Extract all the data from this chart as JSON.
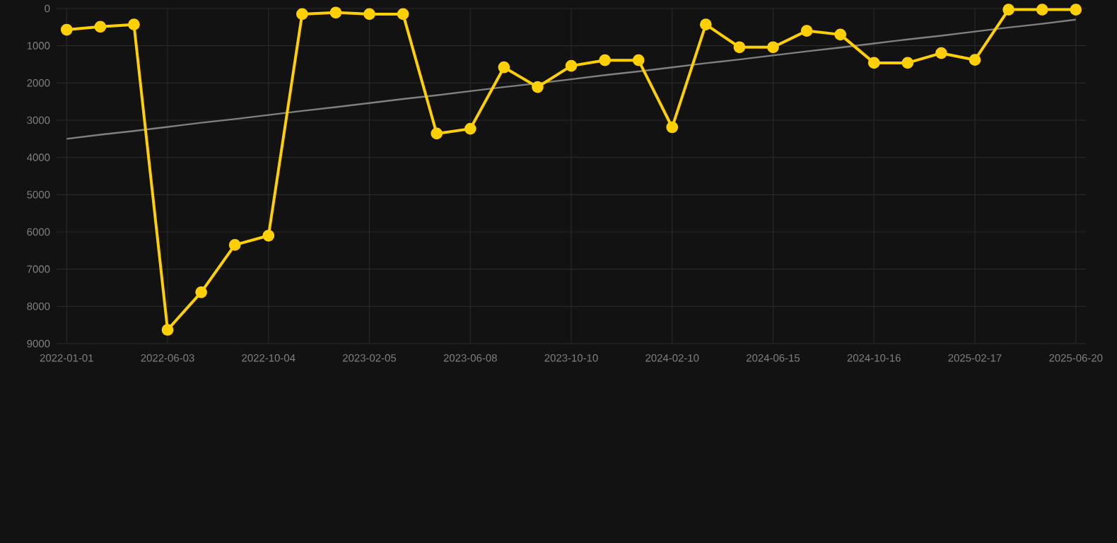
{
  "chart_data": {
    "type": "line",
    "categories": [
      "2022-01-01",
      null,
      null,
      "2022-06-03",
      null,
      null,
      "2022-10-04",
      null,
      null,
      "2023-02-05",
      null,
      null,
      "2023-06-08",
      null,
      null,
      "2023-10-10",
      null,
      null,
      "2024-02-10",
      null,
      null,
      "2024-06-15",
      null,
      null,
      "2024-10-16",
      null,
      null,
      "2025-02-17",
      null,
      null,
      "2025-06-20"
    ],
    "ylim": [
      9000,
      0
    ],
    "yticks": [
      0,
      1000,
      2000,
      3000,
      4000,
      5000,
      6000,
      7000,
      8000,
      9000
    ],
    "grid": true,
    "legend": false,
    "marker": "circle",
    "line_style": "solid",
    "series": [
      {
        "color": "#ffd000",
        "values": [
          570,
          490,
          430,
          8630,
          7620,
          6350,
          6100,
          150,
          110,
          150,
          150,
          3360,
          3230,
          1580,
          2110,
          1540,
          1390,
          1390,
          3190,
          430,
          1040,
          1040,
          600,
          700,
          1460,
          1460,
          1200,
          1380,
          30,
          30,
          30
        ]
      },
      {
        "type": "line",
        "marker": "none",
        "color": "#808080",
        "values": [
          3500,
          3390,
          3290,
          3180,
          3070,
          2970,
          2860,
          2750,
          2650,
          2540,
          2430,
          2330,
          2220,
          2110,
          2010,
          1900,
          1790,
          1690,
          1580,
          1470,
          1370,
          1260,
          1150,
          1050,
          940,
          830,
          730,
          620,
          510,
          410,
          300
        ]
      }
    ]
  }
}
